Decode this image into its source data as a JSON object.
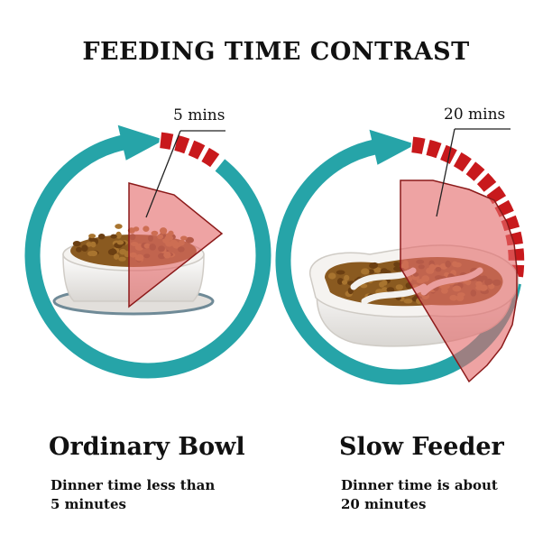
{
  "title": "FEEDING TIME CONTRAST",
  "colors": {
    "ring": "#26a4a8",
    "segment": "#c8191c",
    "wedge_fill": "#e36b6b",
    "wedge_line": "#8c1a1a",
    "bowl": "#f3f1ee",
    "kibble": "#8a5a20",
    "kibble_red": "#b83a24",
    "text": "#111111"
  },
  "panels": [
    {
      "id": "ordinary",
      "duration_label": "5 mins",
      "minutes": 5,
      "heading": "Ordinary Bowl",
      "desc_line1": "Dinner time less than",
      "desc_line2": "5 minutes",
      "icon": "ordinary-bowl-icon"
    },
    {
      "id": "slow",
      "duration_label": "20 mins",
      "minutes": 20,
      "heading": "Slow Feeder",
      "desc_line1": "Dinner time is about",
      "desc_line2": "20 minutes",
      "icon": "slow-feeder-bowl-icon"
    }
  ]
}
